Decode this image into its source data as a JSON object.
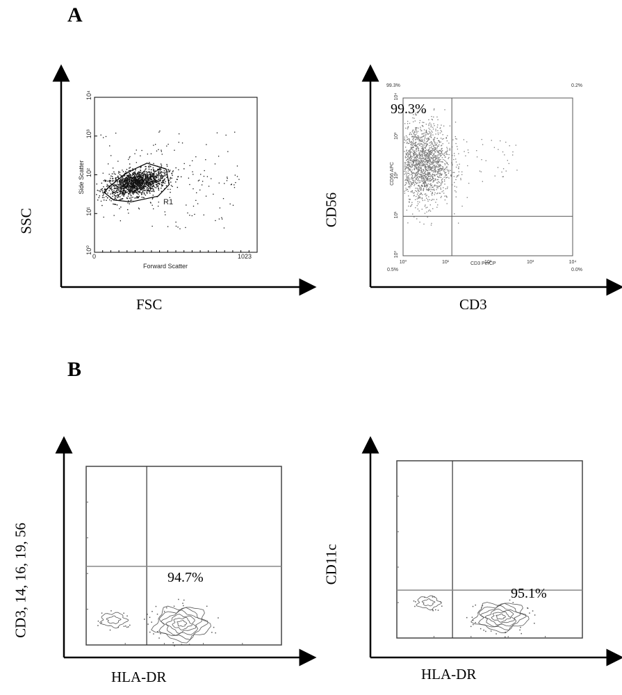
{
  "panels": {
    "a": "A",
    "b": "B"
  },
  "colors": {
    "ink": "#000000",
    "dots": "#111111",
    "gray_dots": "#777777",
    "quad": "#555555"
  },
  "chart_data": [
    {
      "id": "fsc-ssc",
      "type": "scatter",
      "outer_xlabel": "FSC",
      "outer_ylabel": "SSC",
      "xlabel": "Forward Scatter",
      "ylabel": "Side Scatter",
      "x_ticks": [
        "0",
        "1023"
      ],
      "y_ticks": [
        "10⁰",
        "10¹",
        "10²",
        "10³",
        "10⁴"
      ],
      "xlim": [
        0,
        1023
      ],
      "ylim_log": [
        0,
        4
      ],
      "gate": {
        "label": "R1",
        "polygon": [
          [
            60,
            1.55
          ],
          [
            95,
            1.7
          ],
          [
            200,
            2.05
          ],
          [
            330,
            2.3
          ],
          [
            450,
            2.15
          ],
          [
            470,
            1.75
          ],
          [
            400,
            1.45
          ],
          [
            230,
            1.3
          ],
          [
            120,
            1.35
          ]
        ]
      }
    },
    {
      "id": "cd3-cd56",
      "type": "scatter",
      "outer_xlabel": "CD3",
      "outer_ylabel": "CD56",
      "xlabel": "CD3 PerCP",
      "ylabel": "CD56 APC",
      "x_ticks": [
        "10⁰",
        "10¹",
        "10²",
        "10³",
        "10⁴"
      ],
      "y_ticks": [
        "10⁰",
        "10¹",
        "10²",
        "10³",
        "10⁴"
      ],
      "xlim_log": [
        0,
        4
      ],
      "ylim_log": [
        0,
        4
      ],
      "quadrant_x": 1.15,
      "quadrant_y": 1.0,
      "corner_labels": {
        "ul": "99.3%",
        "ur": "0.2%",
        "ll": "0.5%",
        "lr": "0.0%"
      },
      "highlight": "99.3%"
    },
    {
      "id": "lin-hladr",
      "type": "contour",
      "outer_xlabel": "HLA-DR",
      "outer_ylabel": "CD3, 14, 16, 19, 56",
      "quadrant_x": 0.31,
      "quadrant_y": 0.44,
      "highlight": "94.7%"
    },
    {
      "id": "cd11c-hladr",
      "type": "contour",
      "outer_xlabel": "HLA-DR",
      "outer_ylabel": "CD11c",
      "quadrant_x": 0.3,
      "quadrant_y": 0.27,
      "highlight": "95.1%"
    }
  ]
}
